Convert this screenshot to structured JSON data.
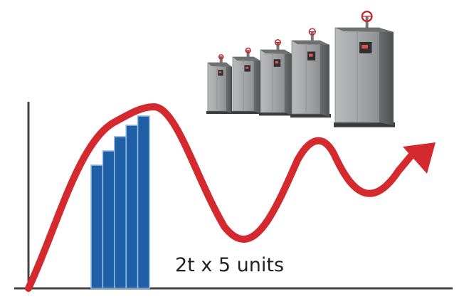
{
  "caption": "2t x 5 units",
  "boiler_count": 5,
  "colors": {
    "curve": "#d42a2f",
    "bands": "#1e5fa6",
    "axis": "#444444",
    "cabinet": "#9a9c9e",
    "cabinet_dark": "#5c5e60",
    "valve": "#c0282c"
  },
  "icons": {
    "boiler": "boiler-unit-icon",
    "valve": "valve-handle-icon",
    "arrow": "arrow-head-icon"
  }
}
